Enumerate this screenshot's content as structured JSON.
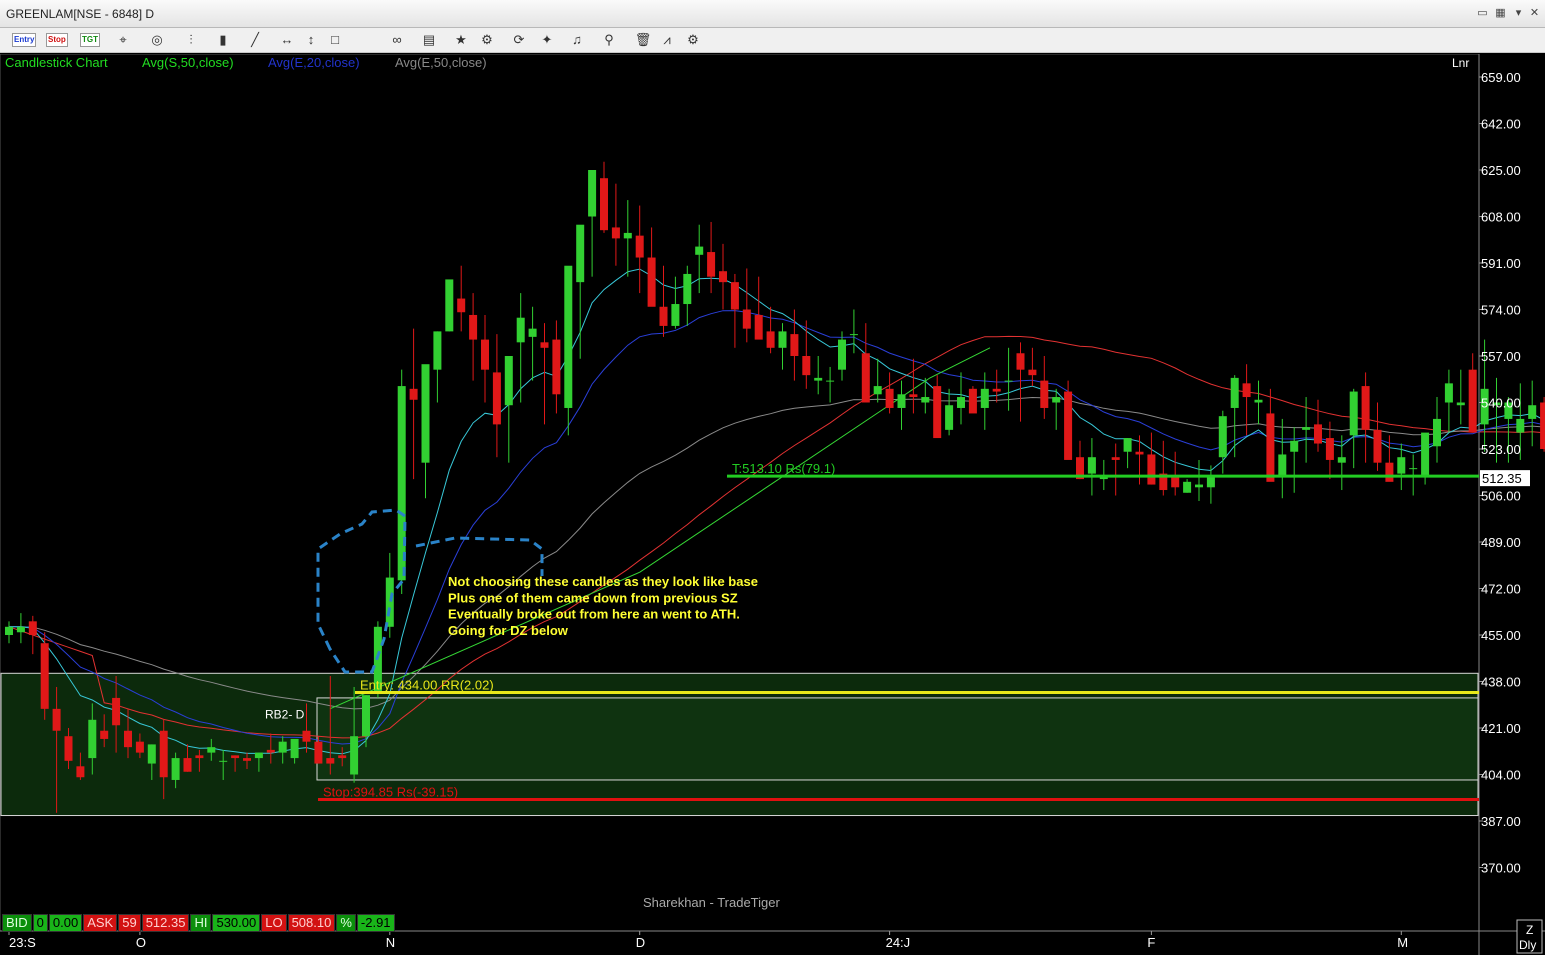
{
  "window": {
    "title": "GREENLAM[NSE - 6848] D",
    "toolbar_buttons": [
      {
        "name": "entry-button",
        "label": "Entry"
      },
      {
        "name": "stop-button",
        "label": "Stop"
      },
      {
        "name": "target-button",
        "label": "TGT"
      }
    ],
    "toolbar_icons": [
      "crosshair-icon",
      "target-icon",
      "bar-style-icon",
      "candle-style-icon",
      "line-tool-icon",
      "horizontal-line-icon",
      "vertical-line-icon",
      "rectangle-icon",
      "link-icon",
      "template-icon",
      "favorite-icon",
      "indicator-icon",
      "refresh-icon",
      "magic-wand-icon",
      "alert-bell-icon",
      "zoom-icon",
      "delete-icon",
      "study-icon",
      "settings-gear-icon"
    ]
  },
  "chart_data": {
    "type": "candlestick",
    "symbol": "GREENLAM[NSE - 6848] D",
    "legend": [
      {
        "label": "Candlestick Chart",
        "color": "#22dd22"
      },
      {
        "label": "Avg(S,50,close)",
        "color": "#22dd22"
      },
      {
        "label": "Avg(E,20,close)",
        "color": "#2233cc"
      },
      {
        "label": "Avg(E,50,close)",
        "color": "#888888"
      }
    ],
    "scale_label": "Lnr",
    "ylim": [
      355,
      665
    ],
    "y_ticks": [
      "659.00",
      "642.00",
      "625.00",
      "608.00",
      "591.00",
      "574.00",
      "557.00",
      "540.00",
      "523.00",
      "506.00",
      "489.00",
      "472.00",
      "455.00",
      "438.00",
      "421.00",
      "404.00",
      "387.00",
      "370.00"
    ],
    "x_ticks": [
      {
        "label": "23:S",
        "index": 0
      },
      {
        "label": "O",
        "index": 11
      },
      {
        "label": "N",
        "index": 32
      },
      {
        "label": "D",
        "index": 53
      },
      {
        "label": "24:J",
        "index": 74
      },
      {
        "label": "F",
        "index": 96
      },
      {
        "label": "M",
        "index": 117
      }
    ],
    "last_price": "512.35",
    "candles_ohlc": [
      [
        455,
        460,
        452,
        458
      ],
      [
        456,
        463,
        452,
        458
      ],
      [
        460,
        462,
        448,
        455
      ],
      [
        452,
        456,
        424,
        428
      ],
      [
        428,
        436,
        390,
        420
      ],
      [
        418,
        421,
        406,
        409
      ],
      [
        407,
        412,
        402,
        403
      ],
      [
        410,
        430,
        404,
        424
      ],
      [
        420,
        426,
        414,
        417
      ],
      [
        432,
        440,
        412,
        422
      ],
      [
        420,
        428,
        410,
        414
      ],
      [
        416,
        419,
        410,
        412
      ],
      [
        408,
        415,
        402,
        415
      ],
      [
        420,
        424,
        395,
        403
      ],
      [
        402,
        412,
        399,
        410
      ],
      [
        410,
        415,
        405,
        405
      ],
      [
        411,
        413,
        405,
        410
      ],
      [
        412,
        417,
        409,
        414
      ],
      [
        409,
        413,
        402,
        409
      ],
      [
        411,
        411,
        405,
        410
      ],
      [
        410,
        412,
        406,
        409
      ],
      [
        410,
        412,
        405,
        412
      ],
      [
        413,
        419,
        408,
        412
      ],
      [
        412,
        418,
        408,
        416
      ],
      [
        410,
        416,
        408,
        417
      ],
      [
        420,
        430,
        412,
        416
      ],
      [
        416,
        418,
        408,
        408
      ],
      [
        410,
        440,
        404,
        408
      ],
      [
        411,
        414,
        407,
        410
      ],
      [
        404,
        436,
        401,
        418
      ],
      [
        418,
        433,
        414,
        433
      ],
      [
        434,
        460,
        432,
        458
      ],
      [
        458,
        485,
        454,
        476
      ],
      [
        475,
        552,
        470,
        546
      ],
      [
        545,
        567,
        512,
        541
      ],
      [
        518,
        548,
        505,
        554
      ],
      [
        552,
        566,
        540,
        566
      ],
      [
        566,
        580,
        566,
        585
      ],
      [
        578,
        590,
        566,
        573
      ],
      [
        572,
        580,
        548,
        563
      ],
      [
        563,
        572,
        540,
        552
      ],
      [
        551,
        565,
        520,
        532
      ],
      [
        539,
        556,
        518,
        557
      ],
      [
        562,
        580,
        540,
        571
      ],
      [
        564,
        575,
        548,
        567
      ],
      [
        562,
        569,
        532,
        560
      ],
      [
        563,
        570,
        536,
        543
      ],
      [
        538,
        582,
        528,
        590
      ],
      [
        584,
        600,
        556,
        605
      ],
      [
        608,
        625,
        586,
        625
      ],
      [
        622,
        628,
        602,
        603
      ],
      [
        604,
        620,
        590,
        600
      ],
      [
        600,
        614,
        586,
        602
      ],
      [
        601,
        612,
        580,
        593
      ],
      [
        593,
        604,
        583,
        575
      ],
      [
        575,
        590,
        564,
        568
      ],
      [
        568,
        586,
        567,
        576
      ],
      [
        576,
        590,
        568,
        587
      ],
      [
        594,
        605,
        580,
        597
      ],
      [
        595,
        606,
        580,
        586
      ],
      [
        588,
        598,
        574,
        584
      ],
      [
        584,
        587,
        560,
        574
      ],
      [
        574,
        589,
        562,
        567
      ],
      [
        572,
        586,
        564,
        563
      ],
      [
        566,
        575,
        558,
        560
      ],
      [
        560,
        569,
        552,
        566
      ],
      [
        565,
        574,
        548,
        557
      ],
      [
        557,
        570,
        545,
        550
      ],
      [
        548,
        557,
        543,
        549
      ],
      [
        548,
        553,
        540,
        548
      ],
      [
        552,
        566,
        548,
        563
      ],
      [
        565,
        574,
        558,
        565
      ],
      [
        558,
        569,
        544,
        540
      ],
      [
        543,
        556,
        540,
        546
      ],
      [
        545,
        551,
        536,
        538
      ],
      [
        538,
        548,
        530,
        543
      ],
      [
        543,
        556,
        536,
        542
      ],
      [
        540,
        549,
        536,
        542
      ],
      [
        546,
        550,
        532,
        527
      ],
      [
        530,
        545,
        528,
        539
      ],
      [
        538,
        551,
        532,
        542
      ],
      [
        545,
        546,
        537,
        536
      ],
      [
        538,
        551,
        530,
        545
      ],
      [
        545,
        552,
        540,
        544
      ],
      [
        548,
        560,
        537,
        548
      ],
      [
        558,
        562,
        533,
        552
      ],
      [
        552,
        560,
        546,
        550
      ],
      [
        548,
        557,
        534,
        538
      ],
      [
        540,
        545,
        530,
        542
      ],
      [
        544,
        548,
        522,
        519
      ],
      [
        520,
        526,
        512,
        512
      ],
      [
        514,
        527,
        506,
        520
      ],
      [
        512,
        519,
        508,
        513
      ],
      [
        520,
        525,
        506,
        519
      ],
      [
        522,
        527,
        516,
        527
      ],
      [
        522,
        528,
        510,
        521
      ],
      [
        521,
        529,
        510,
        510
      ],
      [
        514,
        526,
        506,
        508
      ],
      [
        513,
        522,
        506,
        509
      ],
      [
        507,
        512,
        507,
        511
      ],
      [
        509,
        519,
        504,
        510
      ],
      [
        509,
        517,
        503,
        513
      ],
      [
        520,
        537,
        514,
        535
      ],
      [
        538,
        550,
        520,
        549
      ],
      [
        547,
        554,
        528,
        542
      ],
      [
        540,
        548,
        532,
        541
      ],
      [
        536,
        545,
        512,
        511
      ],
      [
        513,
        534,
        505,
        521
      ],
      [
        522,
        531,
        507,
        526
      ],
      [
        530,
        542,
        518,
        531
      ],
      [
        532,
        541,
        522,
        525
      ],
      [
        527,
        533,
        512,
        519
      ],
      [
        518,
        528,
        508,
        520
      ],
      [
        528,
        545,
        516,
        544
      ],
      [
        546,
        551,
        518,
        530
      ],
      [
        530,
        540,
        515,
        518
      ],
      [
        518,
        528,
        512,
        511
      ],
      [
        514,
        525,
        508,
        520
      ],
      [
        516,
        521,
        506,
        516
      ],
      [
        513,
        527,
        510,
        529
      ],
      [
        524,
        542,
        518,
        534
      ],
      [
        540,
        552,
        529,
        547
      ],
      [
        539,
        552,
        532,
        540
      ],
      [
        552,
        558,
        530,
        529
      ],
      [
        532,
        563,
        522,
        545
      ],
      [
        539,
        549,
        518,
        540
      ],
      [
        534,
        542,
        518,
        540
      ],
      [
        529,
        547,
        519,
        534
      ],
      [
        534,
        548,
        524,
        539
      ],
      [
        540,
        542,
        522,
        523
      ],
      [
        540,
        544,
        512,
        528
      ],
      [
        542,
        548,
        520,
        525
      ],
      [
        529,
        548,
        524,
        544
      ]
    ],
    "series": [
      {
        "name": "Avg(S,50,close)",
        "color": "#22dd22"
      },
      {
        "name": "Avg(E,20,close)",
        "color": "#2233cc"
      },
      {
        "name": "Avg(E,50,close)",
        "color": "#888888"
      }
    ],
    "levels": [
      {
        "label": "T:513.10 Rs(79.1)",
        "value": 513.1,
        "color": "#22cc22"
      },
      {
        "label": "Entry: 434.00 RR(2.02)",
        "value": 434.0,
        "color": "#e8e81a"
      },
      {
        "label": "Stop:394.85 Rs(-39.15)",
        "value": 394.85,
        "color": "#e01010"
      }
    ],
    "zone": {
      "label": "RB2- D",
      "top": 441,
      "bottom": 389
    },
    "inner_zone": {
      "top": 432,
      "bottom": 402
    },
    "annotation": [
      "Not choosing these candles as they look like base",
      "Plus one of them came down from previous SZ",
      "Eventually broke out from here an went to ATH.",
      "Going for DZ below"
    ],
    "watermark": "Sharekhan - TradeTiger",
    "corner_labels": [
      "Z",
      "Dly"
    ]
  },
  "status": {
    "bid_label": "BID",
    "bid_qty": "0",
    "bid_price": "0.00",
    "ask_label": "ASK",
    "ask_qty": "59",
    "ask_price": "512.35",
    "hi_label": "HI",
    "hi_value": "530.00",
    "lo_label": "LO",
    "lo_value": "508.10",
    "pct_label": "%",
    "pct_value": "-2.91"
  }
}
